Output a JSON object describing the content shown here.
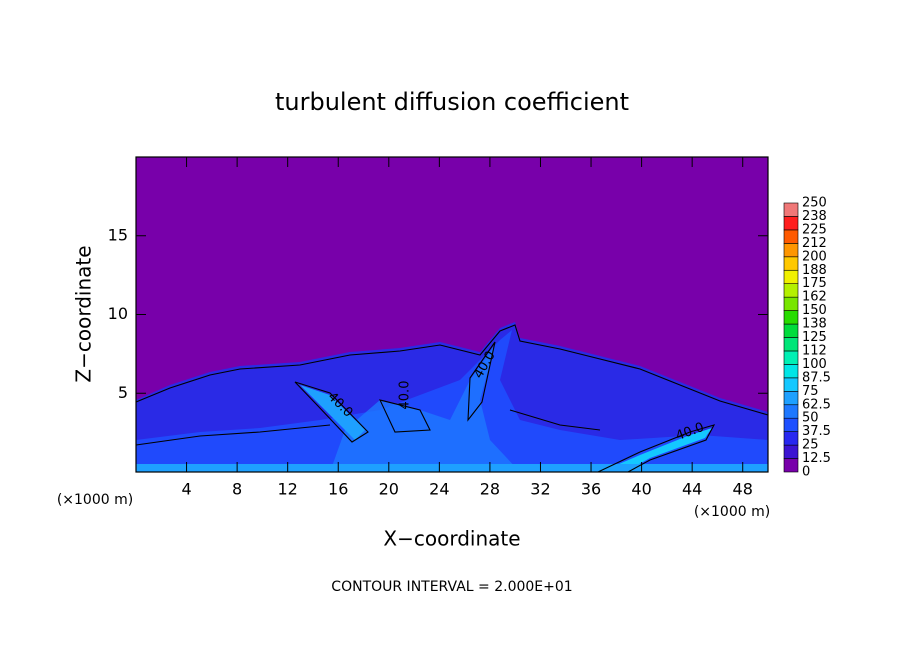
{
  "chart_data": {
    "type": "contour",
    "title": "turbulent diffusion coefficient",
    "x_label": "X−coordinate",
    "y_label": "Z−coordinate",
    "x_unit": "(×1000 m)",
    "y_unit": "(×1000 m)",
    "note": "CONTOUR INTERVAL = 2.000E+01",
    "xlim": [
      0,
      50
    ],
    "xticks": [
      4,
      8,
      12,
      16,
      20,
      24,
      28,
      32,
      36,
      40,
      44,
      48
    ],
    "ylim": [
      0,
      20
    ],
    "yticks": [
      5,
      10,
      15
    ],
    "contour_labels": [
      "40.0",
      "40.0",
      "40.0",
      "40.0"
    ],
    "colorbar": {
      "levels": [
        0,
        12.5,
        25,
        37.5,
        50,
        62.5,
        75,
        87.5,
        100,
        112,
        125,
        138,
        150,
        162,
        175,
        188,
        200,
        212,
        225,
        238,
        250
      ],
      "colors": [
        "#7800aa",
        "#3c14d2",
        "#2828f0",
        "#1e50ff",
        "#1e78ff",
        "#1ea0ff",
        "#14c8ff",
        "#00e6e6",
        "#00f0b4",
        "#00e678",
        "#00dc3c",
        "#28dc00",
        "#78e600",
        "#b4f000",
        "#f0f000",
        "#ffc800",
        "#ff9600",
        "#ff5a00",
        "#ff1e1e",
        "#f07878"
      ]
    }
  }
}
